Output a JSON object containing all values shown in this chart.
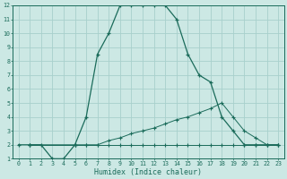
{
  "xlabel": "Humidex (Indice chaleur)",
  "xlim": [
    -0.5,
    23.5
  ],
  "ylim": [
    1,
    12
  ],
  "xticks": [
    0,
    1,
    2,
    3,
    4,
    5,
    6,
    7,
    8,
    9,
    10,
    11,
    12,
    13,
    14,
    15,
    16,
    17,
    18,
    19,
    20,
    21,
    22,
    23
  ],
  "yticks": [
    1,
    2,
    3,
    4,
    5,
    6,
    7,
    8,
    9,
    10,
    11,
    12
  ],
  "bg_color": "#cce8e4",
  "grid_color": "#a8d0cc",
  "line_color": "#1a6b5a",
  "line1_x": [
    0,
    1,
    2,
    3,
    4,
    5,
    6,
    7,
    8,
    9,
    10,
    11,
    12,
    13,
    14,
    15,
    16,
    17,
    18,
    19,
    20,
    21,
    22,
    23
  ],
  "line1_y": [
    2,
    2,
    2,
    1,
    1,
    2,
    4,
    8.5,
    10,
    12,
    12,
    12,
    12,
    12,
    11,
    8.5,
    7,
    6.5,
    4,
    3,
    2,
    2,
    2,
    2
  ],
  "line2_x": [
    1,
    5,
    6,
    7,
    8,
    9,
    10,
    11,
    12,
    13,
    14,
    15,
    16,
    17,
    18,
    19,
    20,
    21,
    22,
    23
  ],
  "line2_y": [
    2,
    2,
    2,
    2,
    2,
    2,
    2,
    2,
    2,
    2,
    2,
    2,
    2,
    2,
    2,
    2,
    2,
    2,
    2,
    2
  ],
  "line3_x": [
    1,
    5,
    6,
    7,
    8,
    9,
    10,
    11,
    12,
    13,
    14,
    15,
    16,
    17,
    18,
    19,
    20,
    21,
    22,
    23
  ],
  "line3_y": [
    2,
    2,
    2,
    2,
    2.3,
    2.5,
    2.8,
    3.0,
    3.2,
    3.5,
    3.8,
    4.0,
    4.3,
    4.6,
    5.0,
    4.0,
    3.0,
    2.5,
    2,
    2
  ]
}
